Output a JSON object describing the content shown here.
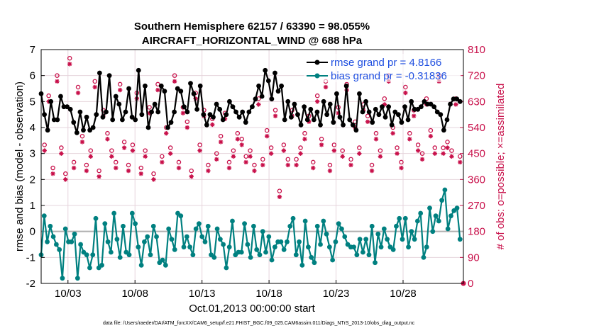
{
  "chart_data": {
    "type": "line",
    "title": "Southern Hemisphere 62157 / 63390 = 98.055%",
    "subtitle": "AIRCRAFT_HORIZONTAL_WIND @ 688 hPa",
    "xlabel": "Oct.01,2013 00:00:00 start",
    "ylabel_left": "rmse and bias (model - observation)",
    "ylabel_right": "# of obs: o=possible; ×=assimilated",
    "footer": "data file: /Users/raeder/DAI/ATM_forcXX/CAM6_setup/f.e21.FHIST_BGC.f09_025.CAM6assim.011/Diags_NTrS_2013-10/obs_diag_output.nc",
    "x_ticks": [
      3,
      8,
      13,
      18,
      23,
      28
    ],
    "x_tick_labels": [
      "10/03",
      "10/08",
      "10/13",
      "10/18",
      "10/23",
      "10/28"
    ],
    "xlim": [
      1,
      32.5
    ],
    "ylim_left": [
      -2,
      7
    ],
    "y_ticks_left": [
      -2,
      -1,
      0,
      1,
      2,
      3,
      4,
      5,
      6,
      7
    ],
    "ylim_right": [
      0,
      810
    ],
    "y_ticks_right": [
      0,
      90,
      180,
      270,
      360,
      450,
      540,
      630,
      720,
      810
    ],
    "grid": true,
    "zero_line": 0,
    "legend_position": "top-right",
    "legend": [
      {
        "label": "rmse grand pr = 4.8166",
        "color": "#000000"
      },
      {
        "label": "bias grand pr = -0.31836",
        "color": "#008080"
      }
    ],
    "series": [
      {
        "name": "rmse",
        "axis": "left",
        "color": "#000000",
        "values": [
          5.3,
          4.5,
          3.9,
          5.0,
          4.3,
          4.3,
          5.2,
          4.8,
          4.8,
          4.7,
          4.2,
          3.8,
          4.6,
          3.9,
          4.4,
          3.9,
          4.0,
          4.5,
          6.1,
          4.4,
          4.6,
          6.0,
          4.3,
          5.2,
          4.9,
          4.3,
          4.6,
          5.5,
          4.4,
          4.3,
          6.2,
          4.5,
          5.6,
          4.0,
          4.6,
          4.9,
          4.6,
          5.6,
          5.4,
          4.0,
          4.2,
          4.6,
          5.5,
          5.4,
          4.8,
          4.6,
          5.7,
          5.3,
          4.7,
          5.6,
          4.5,
          4.1,
          4.5,
          4.4,
          4.9,
          4.7,
          4.3,
          4.5,
          5.0,
          4.8,
          4.6,
          4.4,
          4.6,
          4.2,
          4.6,
          4.8,
          5.1,
          5.6,
          5.2,
          6.2,
          5.8,
          5.1,
          6.1,
          5.4,
          5.6,
          4.3,
          5.0,
          4.4,
          4.9,
          4.5,
          4.1,
          4.8,
          4.3,
          4.7,
          4.3,
          4.6,
          4.1,
          5.0,
          4.5,
          4.9,
          4.2,
          5.3,
          4.4,
          4.1,
          5.6,
          4.3,
          4.1,
          3.9,
          5.3,
          4.6,
          5.0,
          4.6,
          4.2,
          4.7,
          4.5,
          4.8,
          4.4,
          4.8,
          4.1,
          4.6,
          4.5,
          4.2,
          4.8,
          4.3,
          5.0,
          4.7,
          4.7,
          4.8,
          5.0,
          4.9,
          4.9,
          4.8,
          4.6,
          4.5,
          3.9,
          4.3,
          4.9,
          5.1,
          5.1,
          5.0
        ]
      },
      {
        "name": "bias",
        "axis": "left",
        "color": "#008080",
        "values": [
          -0.9,
          0.6,
          -0.4,
          0.2,
          -0.2,
          -0.5,
          -0.7,
          -1.8,
          0.1,
          -0.4,
          -0.4,
          -0.1,
          -1.8,
          -0.5,
          -0.8,
          -0.9,
          -1.4,
          -0.9,
          0.5,
          -1.4,
          -1.3,
          0.3,
          -0.4,
          -0.8,
          0.7,
          -0.3,
          -1.0,
          0.2,
          -0.8,
          -0.9,
          0.7,
          0.3,
          -0.6,
          -1.3,
          -0.4,
          -0.2,
          -0.9,
          0.2,
          -0.2,
          -1.2,
          -1.1,
          -1.3,
          0.1,
          -0.3,
          -0.7,
          0.7,
          0.6,
          -0.6,
          -0.2,
          -0.6,
          -0.9,
          0.1,
          0.3,
          -0.2,
          -0.4,
          0.2,
          -0.9,
          -1.0,
          0.1,
          -0.3,
          -0.5,
          -1.4,
          -0.6,
          0.4,
          -0.9,
          -0.8,
          -0.8,
          0.3,
          -0.5,
          -1.0,
          0.2,
          -0.7,
          -0.9,
          0.0,
          -0.8,
          -0.2,
          -1.1,
          -0.6,
          -0.4,
          -0.4,
          -0.7,
          -0.4,
          0.2,
          0.5,
          -0.9,
          -0.4,
          -1.3,
          0.4,
          -0.6,
          -1.0,
          -1.2,
          0.2,
          -0.5,
          0.4,
          -0.1,
          -0.6,
          -1.1,
          -0.4,
          0.3,
          0.1,
          -0.2,
          -0.5,
          -0.6,
          -0.6,
          -0.9,
          -0.3,
          -0.8,
          -0.3,
          -0.9,
          0.2,
          -1.2,
          -0.1,
          -0.6,
          0.1,
          -0.3,
          -0.6,
          -0.7,
          0.2,
          0.5,
          -0.3,
          0.5,
          -0.6,
          0.0,
          -0.3,
          0.4,
          0.7,
          -1.0,
          -0.6,
          0.9,
          0.0,
          0.6,
          0.4,
          1.2,
          1.6,
          0.1,
          0.6,
          0.8,
          0.9,
          -0.3
        ]
      },
      {
        "name": "possible",
        "axis": "right",
        "color": "#c8104a",
        "marker": "o",
        "values": [
          480,
          650,
          400,
          720,
          470,
          380,
          780,
          420,
          680,
          510,
          410,
          460,
          700,
          390,
          600,
          520,
          460,
          420,
          690,
          490,
          410,
          480,
          660,
          400,
          460,
          610,
          380,
          690,
          440,
          540,
          470,
          720,
          420,
          610,
          560,
          390,
          660,
          480,
          600,
          410,
          570,
          450,
          510,
          590,
          420,
          460,
          520,
          500,
          440,
          460,
          410,
          640,
          430,
          530,
          470,
          600,
          320,
          480,
          430,
          600,
          430,
          470,
          520,
          580,
          420,
          650,
          500,
          700,
          410,
          480,
          610,
          460,
          690,
          430,
          560,
          470,
          620,
          580,
          410,
          520,
          460,
          640,
          720,
          540,
          470,
          420,
          680,
          520,
          600,
          480,
          450,
          640,
          530,
          470,
          720,
          470,
          490,
          460,
          640,
          440
        ]
      },
      {
        "name": "assimilated",
        "axis": "right",
        "color": "#c8104a",
        "marker": "*",
        "values": [
          460,
          630,
          380,
          700,
          450,
          360,
          760,
          400,
          660,
          490,
          390,
          440,
          680,
          370,
          580,
          500,
          440,
          400,
          670,
          470,
          390,
          460,
          640,
          380,
          440,
          590,
          360,
          670,
          420,
          520,
          450,
          700,
          400,
          590,
          540,
          370,
          640,
          460,
          580,
          390,
          550,
          430,
          490,
          570,
          400,
          440,
          500,
          480,
          420,
          440,
          390,
          620,
          410,
          510,
          450,
          580,
          300,
          460,
          410,
          580,
          410,
          450,
          500,
          560,
          400,
          630,
          480,
          680,
          390,
          460,
          590,
          440,
          670,
          410,
          540,
          450,
          600,
          560,
          390,
          500,
          440,
          620,
          700,
          520,
          450,
          400,
          660,
          500,
          580,
          460,
          430,
          620,
          510,
          450,
          700,
          450,
          470,
          440,
          620,
          420
        ]
      }
    ]
  }
}
